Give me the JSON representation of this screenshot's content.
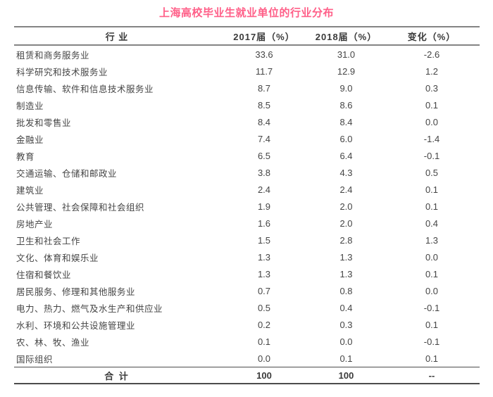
{
  "title": "上海高校毕业生就业单位的行业分布",
  "colors": {
    "title_accent": "#ff5f88",
    "text_dark": "#3a3a3a",
    "text_body": "#454545",
    "rule_gray": "#848484",
    "rule_dark": "#4c4c4c"
  },
  "table": {
    "headers": [
      "行 业",
      "2017届（%）",
      "2018届（%）",
      "变化（%）"
    ],
    "rows": [
      {
        "industry": "租赁和商务服务业",
        "y2017": "33.6",
        "y2018": "31.0",
        "change": "-2.6"
      },
      {
        "industry": "科学研究和技术服务业",
        "y2017": "11.7",
        "y2018": "12.9",
        "change": "1.2"
      },
      {
        "industry": "信息传输、软件和信息技术服务业",
        "y2017": "8.7",
        "y2018": "9.0",
        "change": "0.3"
      },
      {
        "industry": "制造业",
        "y2017": "8.5",
        "y2018": "8.6",
        "change": "0.1"
      },
      {
        "industry": "批发和零售业",
        "y2017": "8.4",
        "y2018": "8.4",
        "change": "0.0"
      },
      {
        "industry": "金融业",
        "y2017": "7.4",
        "y2018": "6.0",
        "change": "-1.4"
      },
      {
        "industry": "教育",
        "y2017": "6.5",
        "y2018": "6.4",
        "change": "-0.1"
      },
      {
        "industry": "交通运输、仓储和邮政业",
        "y2017": "3.8",
        "y2018": "4.3",
        "change": "0.5"
      },
      {
        "industry": "建筑业",
        "y2017": "2.4",
        "y2018": "2.4",
        "change": "0.1"
      },
      {
        "industry": "公共管理、社会保障和社会组织",
        "y2017": "1.9",
        "y2018": "2.0",
        "change": "0.1"
      },
      {
        "industry": "房地产业",
        "y2017": "1.6",
        "y2018": "2.0",
        "change": "0.4"
      },
      {
        "industry": "卫生和社会工作",
        "y2017": "1.5",
        "y2018": "2.8",
        "change": "1.3"
      },
      {
        "industry": "文化、体育和娱乐业",
        "y2017": "1.3",
        "y2018": "1.3",
        "change": "0.0"
      },
      {
        "industry": "住宿和餐饮业",
        "y2017": "1.3",
        "y2018": "1.3",
        "change": "0.1"
      },
      {
        "industry": "居民服务、修理和其他服务业",
        "y2017": "0.7",
        "y2018": "0.8",
        "change": "0.0"
      },
      {
        "industry": "电力、热力、燃气及水生产和供应业",
        "y2017": "0.5",
        "y2018": "0.4",
        "change": "-0.1"
      },
      {
        "industry": "水利、环境和公共设施管理业",
        "y2017": "0.2",
        "y2018": "0.3",
        "change": "0.1"
      },
      {
        "industry": "农、林、牧、渔业",
        "y2017": "0.1",
        "y2018": "0.0",
        "change": "-0.1"
      },
      {
        "industry": "国际组织",
        "y2017": "0.0",
        "y2018": "0.1",
        "change": "0.1"
      }
    ],
    "total": {
      "label": "合 计",
      "y2017": "100",
      "y2018": "100",
      "change": "--"
    }
  },
  "chart_data": {
    "type": "table",
    "title": "上海高校毕业生就业单位的行业分布",
    "columns": [
      "行业",
      "2017届（%）",
      "2018届（%）",
      "变化（%）"
    ],
    "rows": [
      [
        "租赁和商务服务业",
        33.6,
        31.0,
        -2.6
      ],
      [
        "科学研究和技术服务业",
        11.7,
        12.9,
        1.2
      ],
      [
        "信息传输、软件和信息技术服务业",
        8.7,
        9.0,
        0.3
      ],
      [
        "制造业",
        8.5,
        8.6,
        0.1
      ],
      [
        "批发和零售业",
        8.4,
        8.4,
        0.0
      ],
      [
        "金融业",
        7.4,
        6.0,
        -1.4
      ],
      [
        "教育",
        6.5,
        6.4,
        -0.1
      ],
      [
        "交通运输、仓储和邮政业",
        3.8,
        4.3,
        0.5
      ],
      [
        "建筑业",
        2.4,
        2.4,
        0.1
      ],
      [
        "公共管理、社会保障和社会组织",
        1.9,
        2.0,
        0.1
      ],
      [
        "房地产业",
        1.6,
        2.0,
        0.4
      ],
      [
        "卫生和社会工作",
        1.5,
        2.8,
        1.3
      ],
      [
        "文化、体育和娱乐业",
        1.3,
        1.3,
        0.0
      ],
      [
        "住宿和餐饮业",
        1.3,
        1.3,
        0.1
      ],
      [
        "居民服务、修理和其他服务业",
        0.7,
        0.8,
        0.0
      ],
      [
        "电力、热力、燃气及水生产和供应业",
        0.5,
        0.4,
        -0.1
      ],
      [
        "水利、环境和公共设施管理业",
        0.2,
        0.3,
        0.1
      ],
      [
        "农、林、牧、渔业",
        0.1,
        0.0,
        -0.1
      ],
      [
        "国际组织",
        0.0,
        0.1,
        0.1
      ],
      [
        "合计",
        100,
        100,
        "--"
      ]
    ]
  }
}
